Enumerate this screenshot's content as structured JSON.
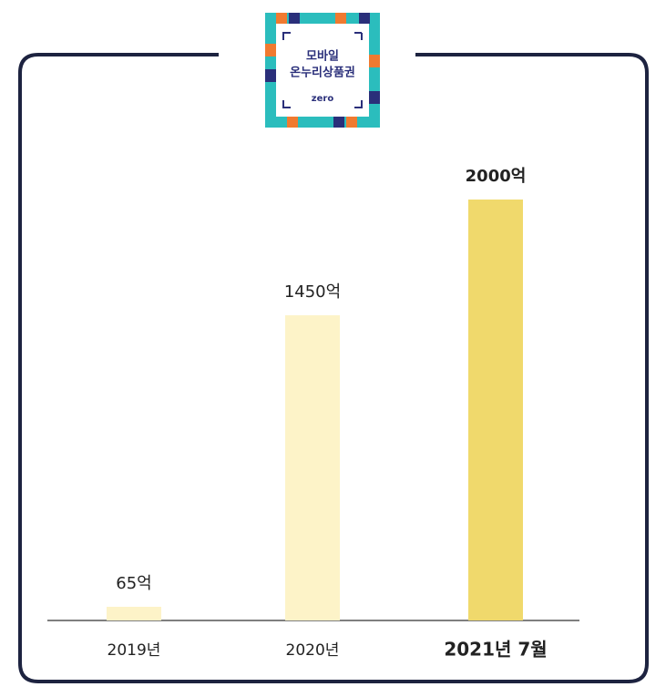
{
  "chart_data": {
    "type": "bar",
    "categories": [
      "2019년",
      "2020년",
      "2021년 7월"
    ],
    "values": [
      65,
      1450,
      2000
    ],
    "value_labels": [
      "65억",
      "1450억",
      "2000억"
    ],
    "colors": [
      "#fdf3c8",
      "#fdf3c8",
      "#f0d96c"
    ],
    "highlight": 2
  },
  "logo": {
    "lines": [
      "모바일",
      "온누리상품권"
    ],
    "brand": "zero"
  }
}
